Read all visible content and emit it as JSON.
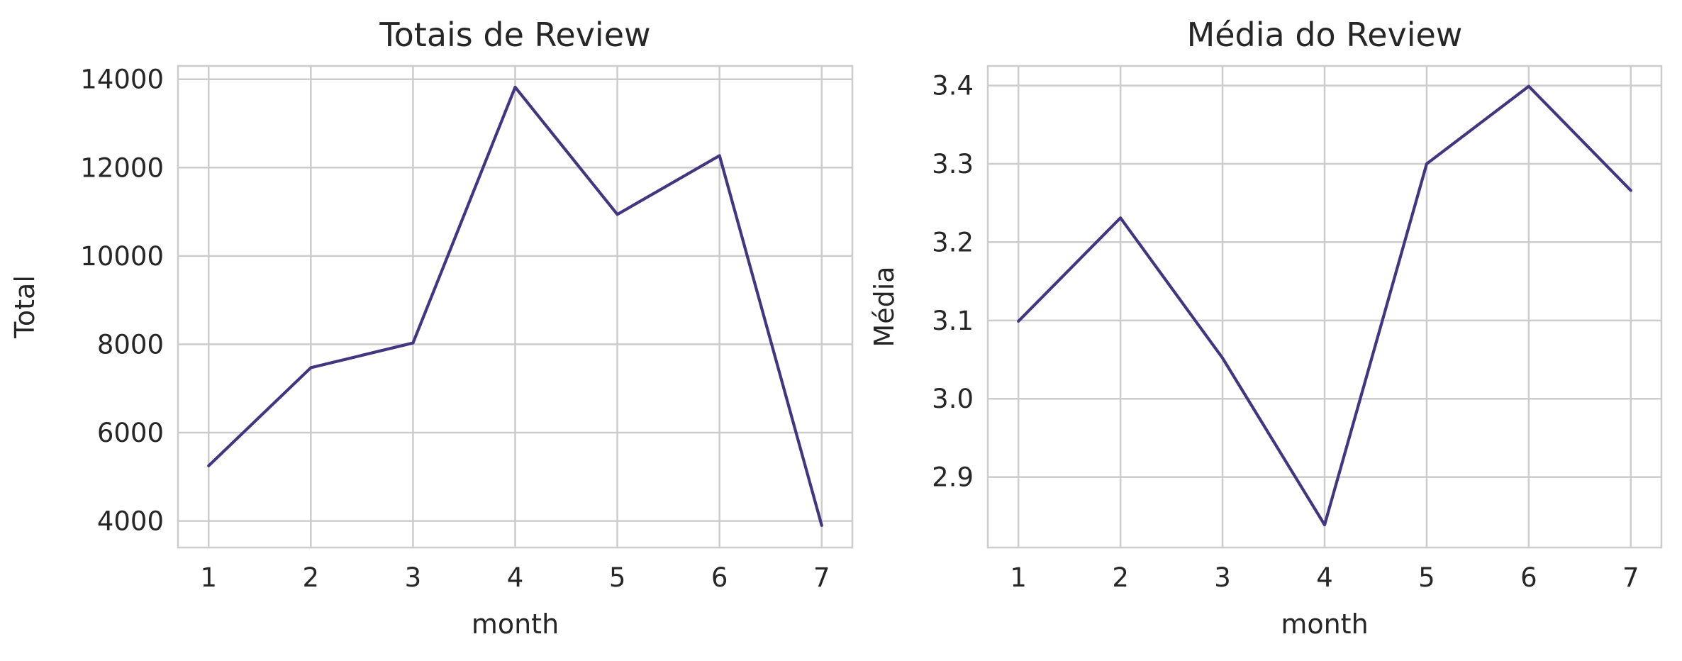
{
  "figure": {
    "line_color": "#433580"
  },
  "chart_data": [
    {
      "type": "line",
      "title": "Totais de Review",
      "xlabel": "month",
      "ylabel": "Total",
      "x": [
        1,
        2,
        3,
        4,
        5,
        6,
        7
      ],
      "series": [
        {
          "values": [
            5250,
            7470,
            8030,
            13820,
            10940,
            12270,
            3900
          ]
        }
      ],
      "xticks": [
        1,
        2,
        3,
        4,
        5,
        6,
        7
      ],
      "yticks": [
        4000,
        6000,
        8000,
        10000,
        12000,
        14000
      ],
      "ytick_labels": [
        "4000",
        "6000",
        "8000",
        "10000",
        "12000",
        "14000"
      ],
      "xlim": [
        0.7,
        7.3
      ],
      "ylim": [
        3400,
        14300
      ],
      "grid": true,
      "legend": "none"
    },
    {
      "type": "line",
      "title": "Média do Review",
      "xlabel": "month",
      "ylabel": "Média",
      "x": [
        1,
        2,
        3,
        4,
        5,
        6,
        7
      ],
      "series": [
        {
          "values": [
            3.099,
            3.231,
            3.052,
            2.839,
            3.3,
            3.399,
            3.266
          ]
        }
      ],
      "xticks": [
        1,
        2,
        3,
        4,
        5,
        6,
        7
      ],
      "yticks": [
        2.9,
        3.0,
        3.1,
        3.2,
        3.3,
        3.4
      ],
      "ytick_labels": [
        "2.9",
        "3.0",
        "3.1",
        "3.2",
        "3.3",
        "3.4"
      ],
      "xlim": [
        0.7,
        7.3
      ],
      "ylim": [
        2.81,
        3.425
      ],
      "grid": true,
      "legend": "none"
    }
  ]
}
